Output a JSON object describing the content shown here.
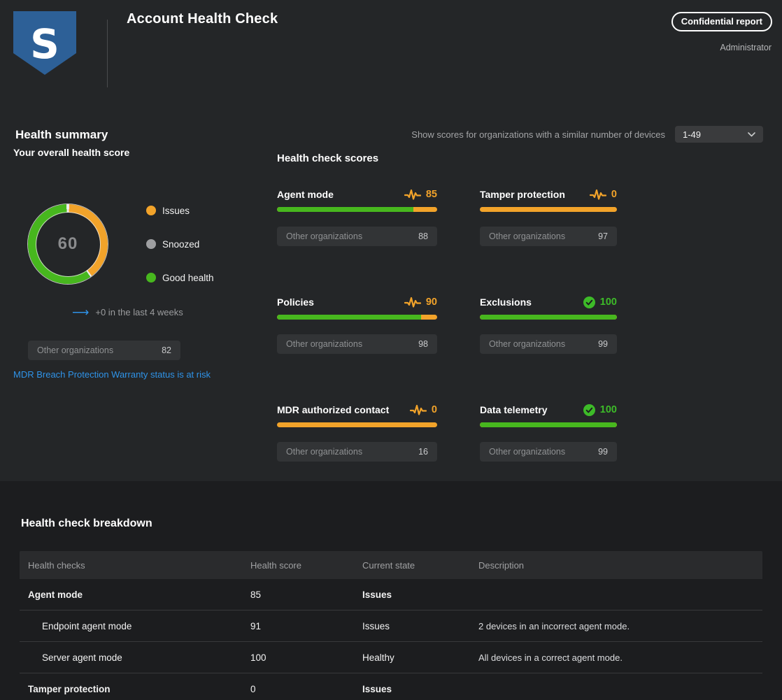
{
  "header": {
    "title": "Account Health Check",
    "badge_label": "Confidential report",
    "user": "Administrator",
    "logo": "sophos-shield-logo",
    "brand_blue": "#2d6097"
  },
  "filter": {
    "label": "Show scores for organizations with a similar number of devices",
    "value": "1-49"
  },
  "health_summary": {
    "title": "Health summary",
    "subtitle": "Your overall health score",
    "score": 60,
    "donut_segments": [
      {
        "label": "Issues",
        "pct": 40,
        "color": "#f2a32a"
      },
      {
        "label": "Good health",
        "pct": 60,
        "color": "#47b71e"
      }
    ],
    "legend": [
      {
        "label": "Issues",
        "color": "#f2a32a"
      },
      {
        "label": "Snoozed",
        "color": "#9e9fa1"
      },
      {
        "label": "Good health",
        "color": "#47b71e"
      }
    ],
    "trend": "+0 in the last 4 weeks",
    "benchmark": {
      "label": "Other organizations",
      "value": "82"
    },
    "warning_link": "MDR Breach Protection Warranty status is at risk",
    "link_color": "#2f93e8"
  },
  "score_section": {
    "title": "Health check scores",
    "issue_color": "#f2a32a",
    "good_color": "#47b71e",
    "cards": [
      {
        "title": "Agent mode",
        "score": 85,
        "status": "issue",
        "icon": "pulse-icon",
        "other_label": "Other organizations",
        "other_value": "88"
      },
      {
        "title": "Tamper protection",
        "score": 0,
        "status": "issue",
        "icon": "pulse-icon",
        "other_label": "Other organizations",
        "other_value": "97"
      },
      {
        "title": "Policies",
        "score": 90,
        "status": "issue",
        "icon": "pulse-icon",
        "other_label": "Other organizations",
        "other_value": "98"
      },
      {
        "title": "Exclusions",
        "score": 100,
        "status": "good",
        "icon": "check-circle-icon",
        "other_label": "Other organizations",
        "other_value": "99"
      },
      {
        "title": "MDR authorized contact",
        "score": 0,
        "status": "issue",
        "icon": "pulse-icon",
        "other_label": "Other organizations",
        "other_value": "16"
      },
      {
        "title": "Data telemetry",
        "score": 100,
        "status": "good",
        "icon": "check-circle-icon",
        "other_label": "Other organizations",
        "other_value": "99"
      }
    ]
  },
  "breakdown": {
    "title": "Health check breakdown",
    "columns": [
      "Health checks",
      "Health score",
      "Current state",
      "Description"
    ],
    "rows": [
      {
        "name": "Agent mode",
        "score": "85",
        "state": "Issues",
        "description": "",
        "level": "parent"
      },
      {
        "name": "Endpoint agent mode",
        "score": "91",
        "state": "Issues",
        "description": "2 devices in an incorrect agent mode.",
        "level": "child"
      },
      {
        "name": "Server agent mode",
        "score": "100",
        "state": "Healthy",
        "description": "All devices in a correct agent mode.",
        "level": "child"
      },
      {
        "name": "Tamper protection",
        "score": "0",
        "state": "Issues",
        "description": "",
        "level": "parent"
      }
    ]
  }
}
